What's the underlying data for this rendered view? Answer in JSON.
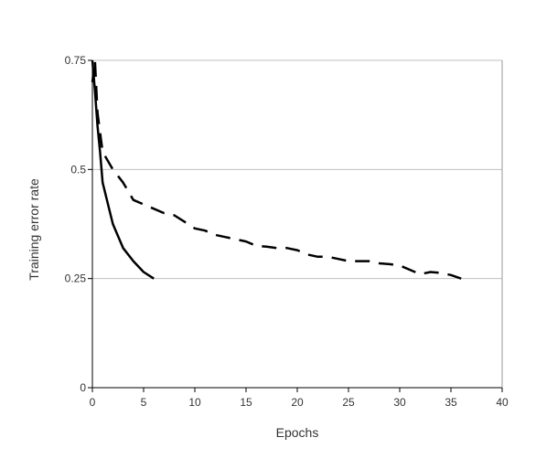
{
  "chart_data": {
    "type": "line",
    "title": "",
    "xlabel": "Epochs",
    "ylabel": "Training error rate",
    "xlim": [
      0,
      40
    ],
    "ylim": [
      0,
      0.75
    ],
    "x_ticks": [
      0,
      5,
      10,
      15,
      20,
      25,
      30,
      35,
      40
    ],
    "y_ticks": [
      0,
      0.25,
      0.5,
      0.75
    ],
    "x_tick_labels": [
      "0",
      "5",
      "10",
      "15",
      "20",
      "25",
      "30",
      "35",
      "40"
    ],
    "y_tick_labels": [
      "0",
      "0.25",
      "0.5",
      "0.75"
    ],
    "grid": "horizontal",
    "legend": "none",
    "series": [
      {
        "style": "solid",
        "color": "#000000",
        "x": [
          0,
          0.25,
          0.5,
          0.75,
          1,
          2,
          3,
          4,
          5,
          6
        ],
        "y": [
          0.75,
          0.68,
          0.6,
          0.54,
          0.47,
          0.375,
          0.32,
          0.29,
          0.265,
          0.25
        ]
      },
      {
        "style": "dashed",
        "color": "#000000",
        "x": [
          0,
          0.25,
          0.5,
          1,
          2,
          3,
          4,
          5,
          6,
          7,
          8,
          9,
          10,
          11,
          12,
          13,
          14,
          15,
          16,
          17,
          18,
          19,
          20,
          21,
          22,
          23,
          24,
          25,
          26,
          27,
          28,
          29,
          30,
          31,
          32,
          33,
          34,
          35,
          36
        ],
        "y": [
          0.7,
          0.75,
          0.63,
          0.54,
          0.5,
          0.47,
          0.43,
          0.42,
          0.41,
          0.4,
          0.395,
          0.38,
          0.365,
          0.36,
          0.35,
          0.345,
          0.34,
          0.335,
          0.325,
          0.323,
          0.32,
          0.32,
          0.315,
          0.305,
          0.3,
          0.3,
          0.295,
          0.29,
          0.29,
          0.29,
          0.285,
          0.283,
          0.28,
          0.27,
          0.26,
          0.265,
          0.263,
          0.258,
          0.25
        ]
      }
    ]
  }
}
